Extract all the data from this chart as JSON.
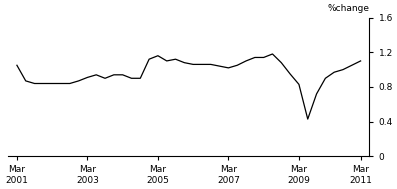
{
  "title": "%change",
  "ylim": [
    0,
    1.6
  ],
  "yticks": [
    0,
    0.4,
    0.8,
    1.2,
    1.6
  ],
  "ytick_labels": [
    "0",
    "0.4",
    "0.8",
    "1.2",
    "1.6"
  ],
  "xtick_labels": [
    "Mar\n2001",
    "Mar\n2003",
    "Mar\n2005",
    "Mar\n2007",
    "Mar\n2009",
    "Mar\n2011"
  ],
  "line_color": "#000000",
  "line_width": 0.9,
  "background_color": "#ffffff",
  "data_x": [
    2001.25,
    2001.5,
    2001.75,
    2002.0,
    2002.25,
    2002.5,
    2002.75,
    2003.0,
    2003.25,
    2003.5,
    2003.75,
    2004.0,
    2004.25,
    2004.5,
    2004.75,
    2005.0,
    2005.25,
    2005.5,
    2005.75,
    2006.0,
    2006.25,
    2006.5,
    2006.75,
    2007.0,
    2007.25,
    2007.5,
    2007.75,
    2008.0,
    2008.25,
    2008.5,
    2008.75,
    2009.0,
    2009.25,
    2009.5,
    2009.75,
    2010.0,
    2010.25,
    2010.5,
    2010.75,
    2011.0
  ],
  "data_y": [
    1.05,
    0.87,
    0.84,
    0.84,
    0.84,
    0.84,
    0.84,
    0.87,
    0.91,
    0.94,
    0.9,
    0.94,
    0.94,
    0.9,
    0.9,
    1.12,
    1.16,
    1.1,
    1.12,
    1.08,
    1.06,
    1.06,
    1.06,
    1.04,
    1.02,
    1.05,
    1.1,
    1.14,
    1.14,
    1.18,
    1.08,
    0.95,
    0.83,
    0.43,
    0.72,
    0.9,
    0.97,
    1.0,
    1.05,
    1.1
  ],
  "xtick_x": [
    2001.25,
    2003.25,
    2005.25,
    2007.25,
    2009.25,
    2011.0
  ],
  "xlim": [
    2001.0,
    2011.25
  ]
}
